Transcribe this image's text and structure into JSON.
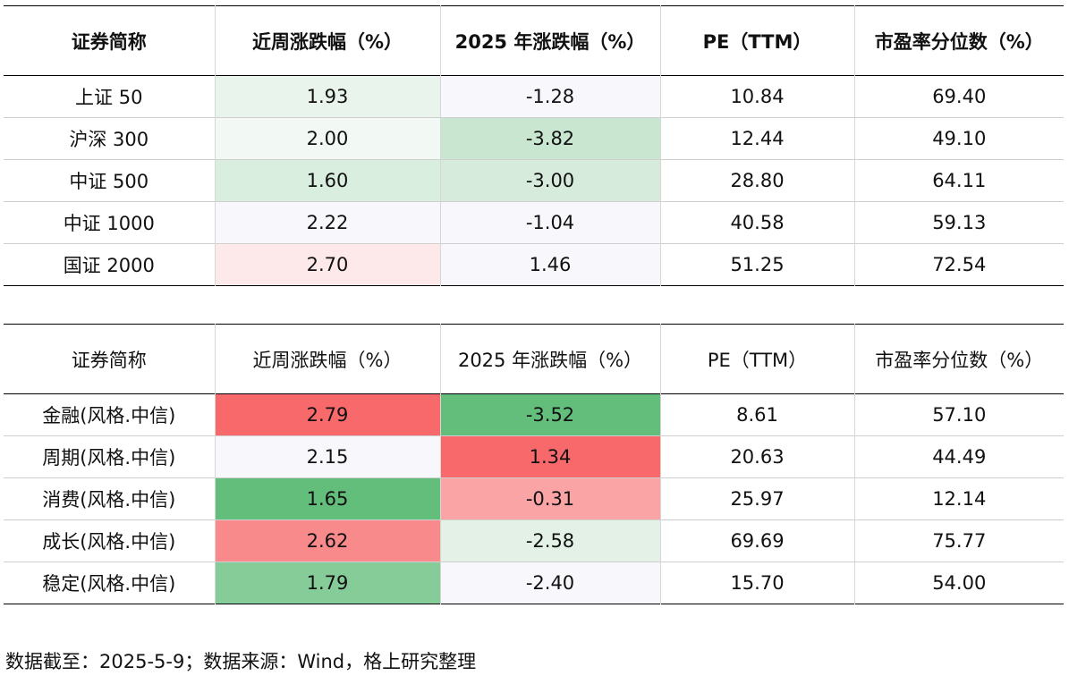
{
  "table1": {
    "headers": [
      "证券简称",
      "近周涨跌幅（%）",
      "2025 年涨跌幅（%）",
      "PE（TTM）",
      "市盈率分位数（%）"
    ],
    "rows": [
      {
        "name": "上证 50",
        "week": "1.93",
        "ytd": "-1.28",
        "pe": "10.84",
        "pct": "69.40"
      },
      {
        "name": "沪深 300",
        "week": "2.00",
        "ytd": "-3.82",
        "pe": "12.44",
        "pct": "49.10"
      },
      {
        "name": "中证 500",
        "week": "1.60",
        "ytd": "-3.00",
        "pe": "28.80",
        "pct": "64.11"
      },
      {
        "name": "中证 1000",
        "week": "2.22",
        "ytd": "-1.04",
        "pe": "40.58",
        "pct": "59.13"
      },
      {
        "name": "国证 2000",
        "week": "2.70",
        "ytd": "1.46",
        "pe": "51.25",
        "pct": "72.54"
      }
    ]
  },
  "table2": {
    "headers": [
      "证券简称",
      "近周涨跌幅（%）",
      "2025 年涨跌幅（%）",
      "PE（TTM）",
      "市盈率分位数（%）"
    ],
    "rows": [
      {
        "name": "金融(风格.中信)",
        "week": "2.79",
        "ytd": "-3.52",
        "pe": "8.61",
        "pct": "57.10"
      },
      {
        "name": "周期(风格.中信)",
        "week": "2.15",
        "ytd": "1.34",
        "pe": "20.63",
        "pct": "44.49"
      },
      {
        "name": "消费(风格.中信)",
        "week": "1.65",
        "ytd": "-0.31",
        "pe": "25.97",
        "pct": "12.14"
      },
      {
        "name": "成长(风格.中信)",
        "week": "2.62",
        "ytd": "-2.58",
        "pe": "69.69",
        "pct": "75.77"
      },
      {
        "name": "稳定(风格.中信)",
        "week": "1.79",
        "ytd": "-2.40",
        "pe": "15.70",
        "pct": "54.00"
      }
    ]
  },
  "colors": {
    "t1_week": [
      "#e9f4ec",
      "#f2f8f4",
      "#d9eedf",
      "#f8f8fc",
      "#fde8ea"
    ],
    "t1_ytd": [
      "#f8f8fc",
      "#c8e6d0",
      "#d6ebdc",
      "#f8f8fc",
      "#f8f8fc"
    ],
    "t2_week": [
      "#f8696b",
      "#f8f8fc",
      "#63be7b",
      "#f98a8c",
      "#86cc98"
    ],
    "t2_ytd": [
      "#63be7b",
      "#f8696b",
      "#faa4a6",
      "#e3f1e7",
      "#f8f8fc"
    ]
  },
  "footnote": "数据截至：2025-5-9；数据来源：Wind，格上研究整理"
}
